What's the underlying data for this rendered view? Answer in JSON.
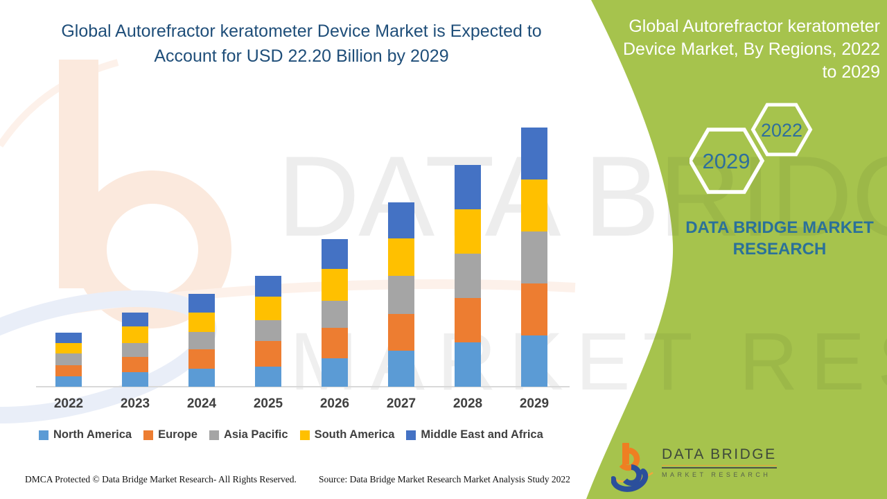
{
  "header": {
    "title_line1": "Global Autorefractor keratometer Device Market is Expected to",
    "title_line2": "Account for USD 22.20 Billion by 2029"
  },
  "side_panel": {
    "title_line1": "Global Autorefractor keratometer",
    "title_line2": "Device Market, By Regions, 2022",
    "title_line3": "to 2029",
    "hexagon_labels": [
      "2029",
      "2022"
    ],
    "brand_line1": "DATA BRIDGE MARKET",
    "brand_line2": "RESEARCH",
    "panel_color": "#A6C34D"
  },
  "watermark": {
    "line1": "DATA BRIDGE",
    "line2": "MARKET RESEARCH"
  },
  "logo": {
    "name_top": "DATA BRIDGE",
    "name_bottom": "MARKET RESEARCH"
  },
  "footer": {
    "left": "DMCA Protected © Data Bridge Market Research- All Rights Reserved.",
    "right": "Source: Data Bridge Market Research Market Analysis Study 2022"
  },
  "chart_data": {
    "type": "bar",
    "stacked": true,
    "unit": "USD Billion",
    "title": "Global Autorefractor keratometer Device Market is Expected to Account for USD 22.20 Billion by 2029",
    "subtitle": "Global Autorefractor keratometer Device Market, By Regions, 2022 to 2029",
    "categories": [
      "2022",
      "2023",
      "2024",
      "2025",
      "2026",
      "2027",
      "2028",
      "2029"
    ],
    "series": [
      {
        "name": "North America",
        "color": "#5B9BD5",
        "values": [
          0.88,
          1.25,
          1.54,
          1.72,
          2.43,
          3.09,
          3.8,
          4.4
        ]
      },
      {
        "name": "Europe",
        "color": "#ED7D31",
        "values": [
          0.95,
          1.31,
          1.66,
          2.2,
          2.61,
          3.15,
          3.8,
          4.45
        ]
      },
      {
        "name": "Asia Pacific",
        "color": "#A5A5A5",
        "values": [
          1.02,
          1.19,
          1.48,
          1.78,
          2.32,
          3.26,
          3.8,
          4.45
        ]
      },
      {
        "name": "South America",
        "color": "#FFC000",
        "values": [
          0.91,
          1.42,
          1.66,
          2.02,
          2.73,
          3.21,
          3.8,
          4.45
        ]
      },
      {
        "name": "Middle East and Africa",
        "color": "#4472C4",
        "values": [
          0.89,
          1.19,
          1.6,
          1.78,
          2.55,
          3.09,
          3.8,
          4.45
        ]
      }
    ],
    "totals": [
      4.65,
      6.36,
      7.94,
      9.5,
      12.64,
      15.8,
      19.0,
      22.2
    ],
    "ylim": [
      0,
      22.2
    ],
    "grid": false,
    "y_axis_visible": false,
    "legend_position": "bottom"
  }
}
